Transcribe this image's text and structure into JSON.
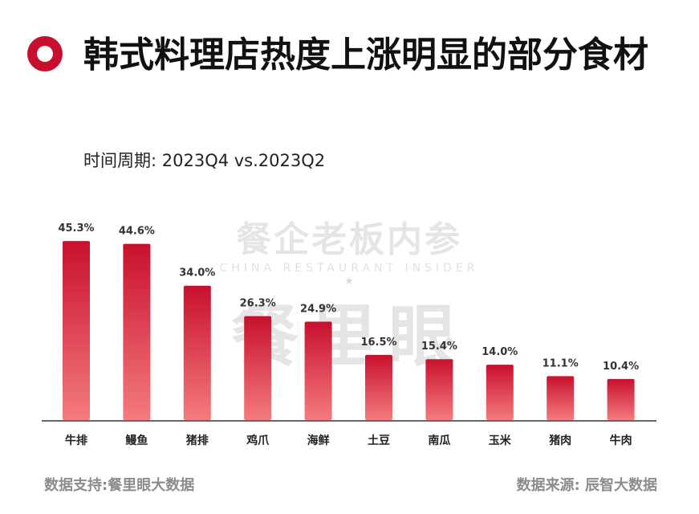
{
  "header": {
    "title": "韩式料理店热度上涨明显的部分食材",
    "subtitle": "时间周期: 2023Q4 vs.2023Q2"
  },
  "watermark": {
    "brand": "餐企老板内参",
    "brand_en": "CHINA RESTAURANT INSIDER",
    "product": "餐里眼"
  },
  "footer": {
    "support": "数据支持:餐里眼大数据",
    "source": "数据来源: 辰智大数据"
  },
  "colors": {
    "accent": "#c8102e",
    "bar_top": "#c8102e",
    "bar_bottom": "#f47b7e",
    "axis": "#666666"
  },
  "chart_data": {
    "type": "bar",
    "categories": [
      "牛排",
      "鳗鱼",
      "猪排",
      "鸡爪",
      "海鲜",
      "土豆",
      "南瓜",
      "玉米",
      "猪肉",
      "牛肉"
    ],
    "values": [
      45.3,
      44.6,
      34.0,
      26.3,
      24.9,
      16.5,
      15.4,
      14.0,
      11.1,
      10.4
    ],
    "value_labels": [
      "45.3%",
      "44.6%",
      "34.0%",
      "26.3%",
      "24.9%",
      "16.5%",
      "15.4%",
      "14.0%",
      "11.1%",
      "10.4%"
    ],
    "ylim": [
      0,
      50
    ],
    "grid": false,
    "legend": "none"
  }
}
